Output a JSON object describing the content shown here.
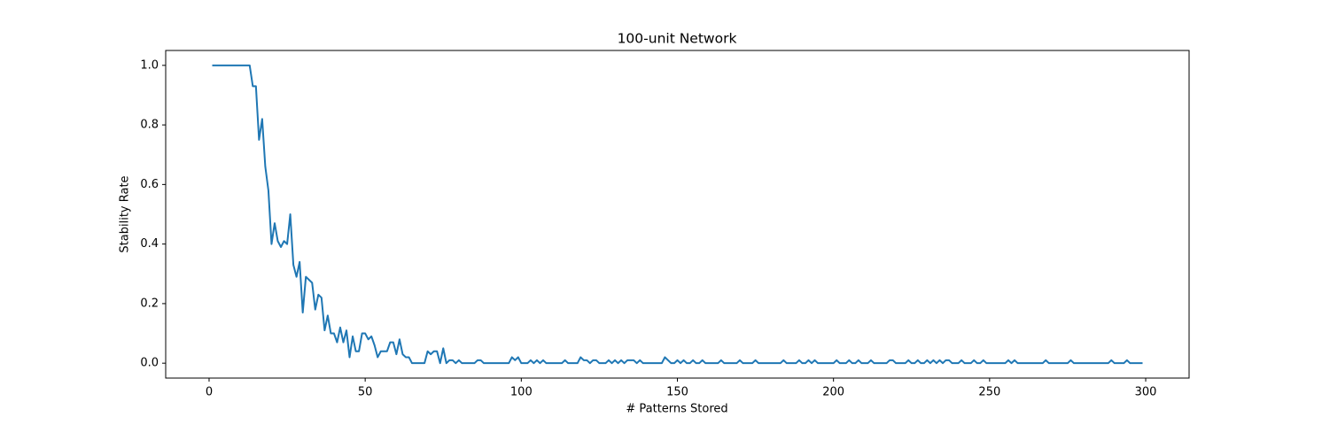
{
  "chart_data": {
    "type": "line",
    "title": "100-unit Network",
    "x_label": "# Patterns Stored",
    "y_label": "Stability Rate",
    "x": [
      1,
      2,
      3,
      4,
      5,
      6,
      7,
      8,
      9,
      10,
      11,
      12,
      13,
      14,
      15,
      16,
      17,
      18,
      19,
      20,
      21,
      22,
      23,
      24,
      25,
      26,
      27,
      28,
      29,
      30,
      31,
      32,
      33,
      34,
      35,
      36,
      37,
      38,
      39,
      40,
      41,
      42,
      43,
      44,
      45,
      46,
      47,
      48,
      49,
      50,
      51,
      52,
      53,
      54,
      55,
      56,
      57,
      58,
      59,
      60,
      61,
      62,
      63,
      64,
      65,
      66,
      67,
      68,
      69,
      70,
      71,
      72,
      73,
      74,
      75,
      76,
      77,
      78,
      79,
      80,
      81,
      82,
      83,
      84,
      85,
      86,
      87,
      88,
      89,
      90,
      91,
      92,
      93,
      94,
      95,
      96,
      97,
      98,
      99,
      100,
      101,
      102,
      103,
      104,
      105,
      106,
      107,
      108,
      109,
      110,
      111,
      112,
      113,
      114,
      115,
      116,
      117,
      118,
      119,
      120,
      121,
      122,
      123,
      124,
      125,
      126,
      127,
      128,
      129,
      130,
      131,
      132,
      133,
      134,
      135,
      136,
      137,
      138,
      139,
      140,
      141,
      142,
      143,
      144,
      145,
      146,
      147,
      148,
      149,
      150,
      151,
      152,
      153,
      154,
      155,
      156,
      157,
      158,
      159,
      160,
      161,
      162,
      163,
      164,
      165,
      166,
      167,
      168,
      169,
      170,
      171,
      172,
      173,
      174,
      175,
      176,
      177,
      178,
      179,
      180,
      181,
      182,
      183,
      184,
      185,
      186,
      187,
      188,
      189,
      190,
      191,
      192,
      193,
      194,
      195,
      196,
      197,
      198,
      199,
      200,
      201,
      202,
      203,
      204,
      205,
      206,
      207,
      208,
      209,
      210,
      211,
      212,
      213,
      214,
      215,
      216,
      217,
      218,
      219,
      220,
      221,
      222,
      223,
      224,
      225,
      226,
      227,
      228,
      229,
      230,
      231,
      232,
      233,
      234,
      235,
      236,
      237,
      238,
      239,
      240,
      241,
      242,
      243,
      244,
      245,
      246,
      247,
      248,
      249,
      250,
      251,
      252,
      253,
      254,
      255,
      256,
      257,
      258,
      259,
      260,
      261,
      262,
      263,
      264,
      265,
      266,
      267,
      268,
      269,
      270,
      271,
      272,
      273,
      274,
      275,
      276,
      277,
      278,
      279,
      280,
      281,
      282,
      283,
      284,
      285,
      286,
      287,
      288,
      289,
      290,
      291,
      292,
      293,
      294,
      295,
      296,
      297,
      298,
      299
    ],
    "series": [
      {
        "color": "#1f77b4",
        "values": [
          1,
          1,
          1,
          1,
          1,
          1,
          1,
          1,
          1,
          1,
          1,
          1,
          1,
          0.93,
          0.93,
          0.75,
          0.82,
          0.66,
          0.58,
          0.4,
          0.47,
          0.41,
          0.39,
          0.41,
          0.4,
          0.5,
          0.33,
          0.29,
          0.34,
          0.17,
          0.29,
          0.28,
          0.27,
          0.18,
          0.23,
          0.22,
          0.11,
          0.16,
          0.1,
          0.1,
          0.07,
          0.12,
          0.07,
          0.11,
          0.02,
          0.09,
          0.04,
          0.04,
          0.1,
          0.1,
          0.08,
          0.09,
          0.06,
          0.02,
          0.04,
          0.04,
          0.04,
          0.07,
          0.07,
          0.03,
          0.08,
          0.03,
          0.02,
          0.02,
          0,
          0,
          0,
          0,
          0,
          0.04,
          0.03,
          0.04,
          0.04,
          0,
          0.05,
          0,
          0.01,
          0.01,
          0,
          0.01,
          0,
          0,
          0,
          0,
          0,
          0.01,
          0.01,
          0,
          0,
          0,
          0,
          0,
          0,
          0,
          0,
          0,
          0.02,
          0.01,
          0.02,
          0,
          0,
          0,
          0.01,
          0,
          0.01,
          0,
          0.01,
          0,
          0,
          0,
          0,
          0,
          0,
          0.01,
          0,
          0,
          0,
          0,
          0.02,
          0.01,
          0.01,
          0,
          0.01,
          0.01,
          0,
          0,
          0,
          0.01,
          0,
          0.01,
          0,
          0.01,
          0,
          0.01,
          0.01,
          0.01,
          0,
          0.01,
          0,
          0,
          0,
          0,
          0,
          0,
          0,
          0.02,
          0.01,
          0,
          0,
          0.01,
          0,
          0.01,
          0,
          0,
          0.01,
          0,
          0,
          0.01,
          0,
          0,
          0,
          0,
          0,
          0.01,
          0,
          0,
          0,
          0,
          0,
          0.01,
          0,
          0,
          0,
          0,
          0.01,
          0,
          0,
          0,
          0,
          0,
          0,
          0,
          0,
          0.01,
          0,
          0,
          0,
          0,
          0.01,
          0,
          0,
          0.01,
          0,
          0.01,
          0,
          0,
          0,
          0,
          0,
          0,
          0.01,
          0,
          0,
          0,
          0.01,
          0,
          0,
          0.01,
          0,
          0,
          0,
          0.01,
          0,
          0,
          0,
          0,
          0,
          0.01,
          0.01,
          0,
          0,
          0,
          0,
          0.01,
          0,
          0,
          0.01,
          0,
          0,
          0.01,
          0,
          0.01,
          0,
          0.01,
          0,
          0.01,
          0.01,
          0,
          0,
          0,
          0.01,
          0,
          0,
          0,
          0.01,
          0,
          0,
          0.01,
          0,
          0,
          0,
          0,
          0,
          0,
          0,
          0.01,
          0,
          0.01,
          0,
          0,
          0,
          0,
          0,
          0,
          0,
          0,
          0,
          0.01,
          0,
          0,
          0,
          0,
          0,
          0,
          0,
          0.01,
          0,
          0,
          0,
          0,
          0,
          0,
          0,
          0,
          0,
          0,
          0,
          0,
          0.01,
          0,
          0,
          0,
          0,
          0.01,
          0,
          0,
          0,
          0,
          0
        ]
      }
    ],
    "xlim": [
      -13.9,
      313.9
    ],
    "xticks": [
      0,
      50,
      100,
      150,
      200,
      250,
      300
    ],
    "ylim": [
      -0.05,
      1.05
    ],
    "yticks": [
      {
        "value": 0,
        "label": "0.0"
      },
      {
        "value": 0.2,
        "label": "0.2"
      },
      {
        "value": 0.4,
        "label": "0.4"
      },
      {
        "value": 0.6,
        "label": "0.6"
      },
      {
        "value": 0.8,
        "label": "0.8"
      },
      {
        "value": 1,
        "label": "1.0"
      }
    ],
    "grid": false
  }
}
